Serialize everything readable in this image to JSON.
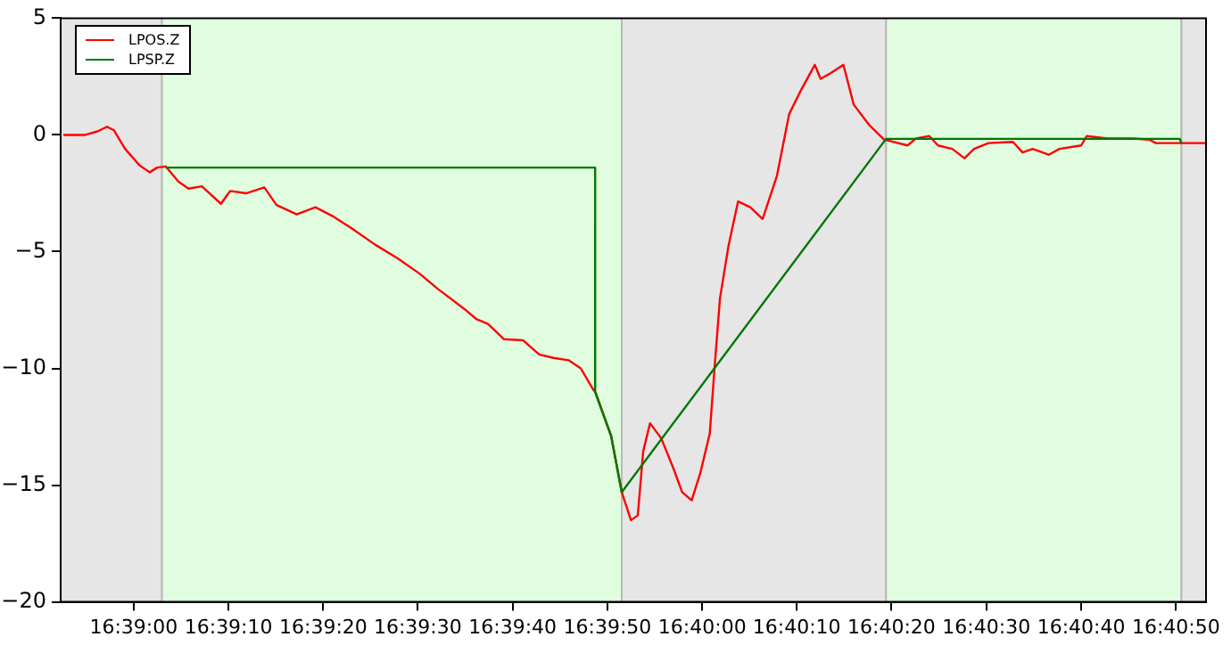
{
  "chart_data": {
    "type": "line",
    "xlim": [
      16.64786,
      16.68144
    ],
    "ylim": [
      -20,
      5
    ],
    "xticks": [
      {
        "value": 16.65,
        "label": "16:39:00"
      },
      {
        "value": 16.65278,
        "label": "16:39:10"
      },
      {
        "value": 16.65556,
        "label": "16:39:20"
      },
      {
        "value": 16.65833,
        "label": "16:39:30"
      },
      {
        "value": 16.66111,
        "label": "16:39:40"
      },
      {
        "value": 16.66389,
        "label": "16:39:50"
      },
      {
        "value": 16.66667,
        "label": "16:40:00"
      },
      {
        "value": 16.66944,
        "label": "16:40:10"
      },
      {
        "value": 16.67222,
        "label": "16:40:20"
      },
      {
        "value": 16.675,
        "label": "16:40:30"
      },
      {
        "value": 16.67778,
        "label": "16:40:40"
      },
      {
        "value": 16.68056,
        "label": "16:40:50"
      }
    ],
    "yticks": [
      -20,
      -15,
      -10,
      -5,
      0,
      5
    ],
    "grid": false,
    "legend": "top left",
    "marker": "none",
    "line_style": "solid",
    "bands": [
      {
        "axis": "x",
        "from": 16.64786,
        "to": 16.65083,
        "color": "#e6e6e6"
      },
      {
        "axis": "x",
        "from": 16.65083,
        "to": 16.66431,
        "color": "#e0fde0"
      },
      {
        "axis": "x",
        "from": 16.66431,
        "to": 16.67206,
        "color": "#e6e6e6"
      },
      {
        "axis": "x",
        "from": 16.67206,
        "to": 16.68072,
        "color": "#e0fde0"
      },
      {
        "axis": "x",
        "from": 16.68072,
        "to": 16.68144,
        "color": "#e6e6e6"
      }
    ],
    "series": [
      {
        "name": "LPOS.Z",
        "color": "#ff0000",
        "x": [
          16.64794,
          16.64858,
          16.64894,
          16.64922,
          16.64942,
          16.64975,
          16.65017,
          16.65047,
          16.65069,
          16.65094,
          16.65131,
          16.65161,
          16.652,
          16.65256,
          16.65283,
          16.65331,
          16.65383,
          16.65419,
          16.65478,
          16.65533,
          16.65586,
          16.65639,
          16.65708,
          16.65775,
          16.65839,
          16.65892,
          16.65969,
          16.66006,
          16.66039,
          16.66086,
          16.66142,
          16.66189,
          16.66231,
          16.66275,
          16.66311,
          16.66347,
          16.66353,
          16.664,
          16.66431,
          16.66458,
          16.66478,
          16.66494,
          16.66514,
          16.66547,
          16.66583,
          16.66608,
          16.66636,
          16.66661,
          16.66689,
          16.66703,
          16.66719,
          16.66744,
          16.66772,
          16.66808,
          16.66844,
          16.66886,
          16.66922,
          16.66956,
          16.66997,
          16.67014,
          16.67044,
          16.67081,
          16.67111,
          16.67158,
          16.672,
          16.67269,
          16.67294,
          16.67333,
          16.67358,
          16.674,
          16.67436,
          16.67464,
          16.67506,
          16.67578,
          16.67606,
          16.67636,
          16.67683,
          16.67714,
          16.67778,
          16.67794,
          16.67856,
          16.67925,
          16.67978,
          16.67997,
          16.68067,
          16.68144
        ],
        "values": [
          0,
          0,
          0.15,
          0.35,
          0.2,
          -0.6,
          -1.3,
          -1.6,
          -1.4,
          -1.35,
          -2.0,
          -2.3,
          -2.2,
          -2.95,
          -2.4,
          -2.5,
          -2.25,
          -3.0,
          -3.4,
          -3.1,
          -3.5,
          -4.0,
          -4.7,
          -5.3,
          -5.95,
          -6.6,
          -7.45,
          -7.9,
          -8.1,
          -8.75,
          -8.8,
          -9.4,
          -9.55,
          -9.65,
          -10.0,
          -10.9,
          -11.0,
          -12.9,
          -15.3,
          -16.5,
          -16.3,
          -13.55,
          -12.35,
          -13.0,
          -14.3,
          -15.3,
          -15.65,
          -14.5,
          -12.8,
          -10.0,
          -7.0,
          -4.75,
          -2.85,
          -3.1,
          -3.6,
          -1.75,
          0.9,
          1.9,
          3.0,
          2.4,
          2.65,
          3.0,
          1.3,
          0.4,
          -0.2,
          -0.45,
          -0.15,
          -0.05,
          -0.45,
          -0.6,
          -1.0,
          -0.6,
          -0.35,
          -0.3,
          -0.75,
          -0.6,
          -0.85,
          -0.6,
          -0.45,
          -0.05,
          -0.15,
          -0.15,
          -0.2,
          -0.35,
          -0.35,
          -0.35
        ]
      },
      {
        "name": "LPSP.Z",
        "color": "#007700",
        "x": [
          16.65094,
          16.66353,
          16.66353,
          16.664,
          16.66431,
          16.67206,
          16.68067,
          16.68072
        ],
        "values": [
          -1.4,
          -1.4,
          -11.0,
          -12.9,
          -15.3,
          -0.17,
          -0.17,
          -0.35
        ]
      }
    ]
  }
}
